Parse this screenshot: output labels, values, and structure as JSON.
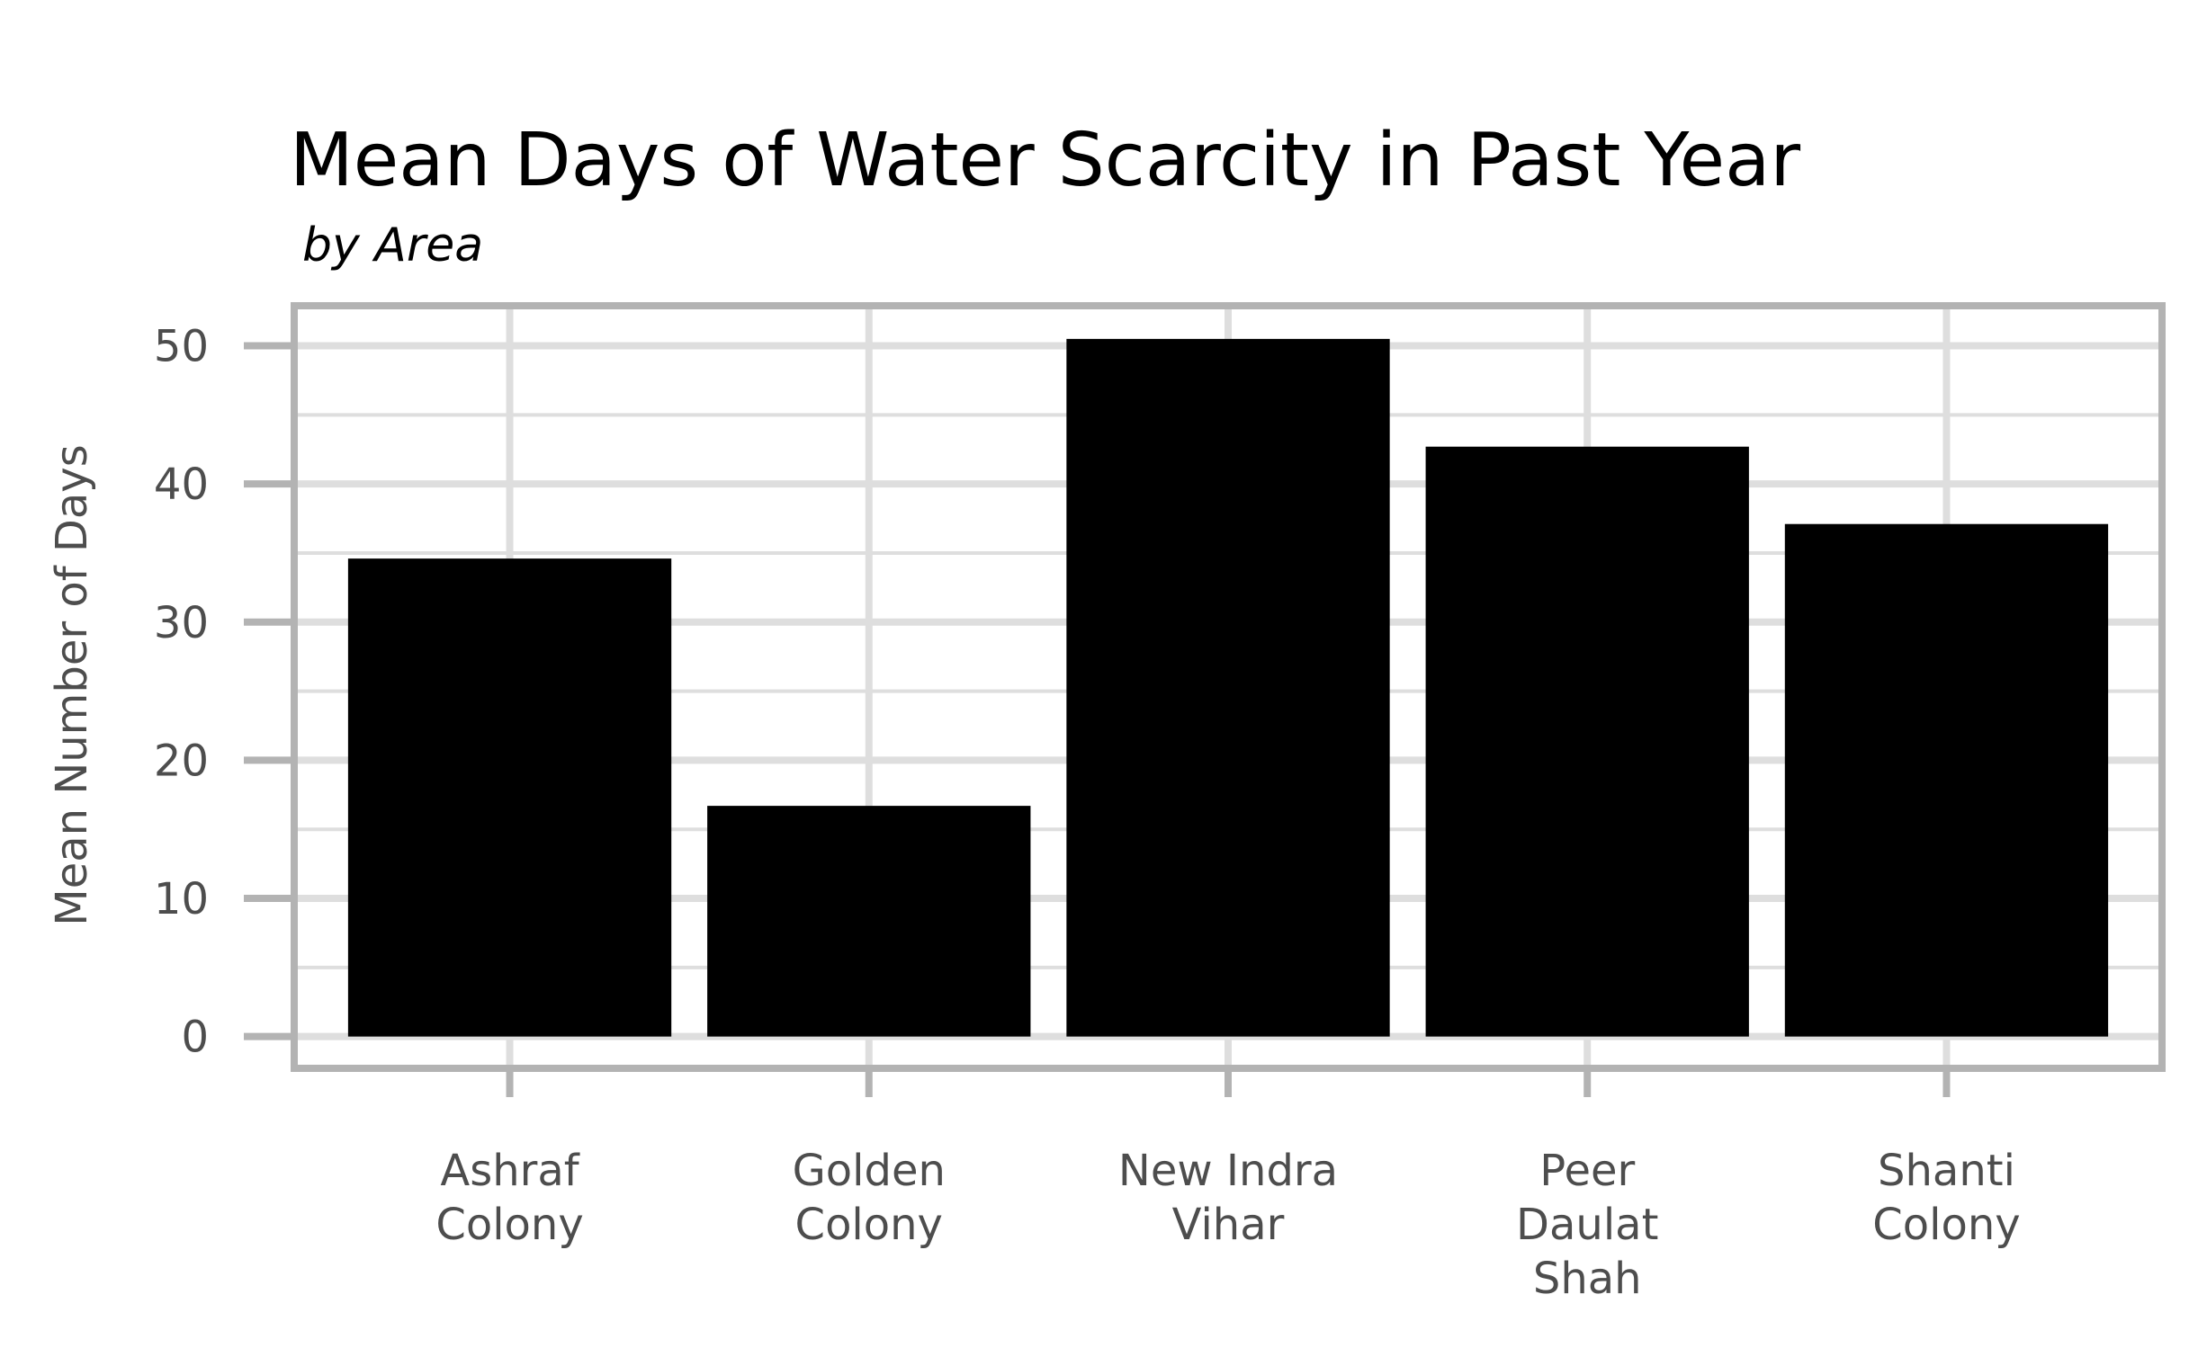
{
  "chart_data": {
    "type": "bar",
    "title": "Mean Days of Water Scarcity in Past Year",
    "subtitle": "by Area",
    "xlabel": "",
    "ylabel": "Mean Number of Days",
    "categories": [
      [
        "Ashraf",
        "Colony"
      ],
      [
        "Golden",
        "Colony"
      ],
      [
        "New Indra",
        "Vihar"
      ],
      [
        "Peer",
        "Daulat",
        "Shah"
      ],
      [
        "Shanti",
        "Colony"
      ]
    ],
    "values": [
      34.6,
      16.7,
      50.5,
      42.7,
      37.1
    ],
    "ylim": [
      -2.3,
      52.9
    ],
    "yticks": [
      0,
      10,
      20,
      30,
      40,
      50
    ],
    "grid": true,
    "bar_color": "#000000",
    "grid_color": "#dedede",
    "border_color": "#b3b3b3"
  }
}
